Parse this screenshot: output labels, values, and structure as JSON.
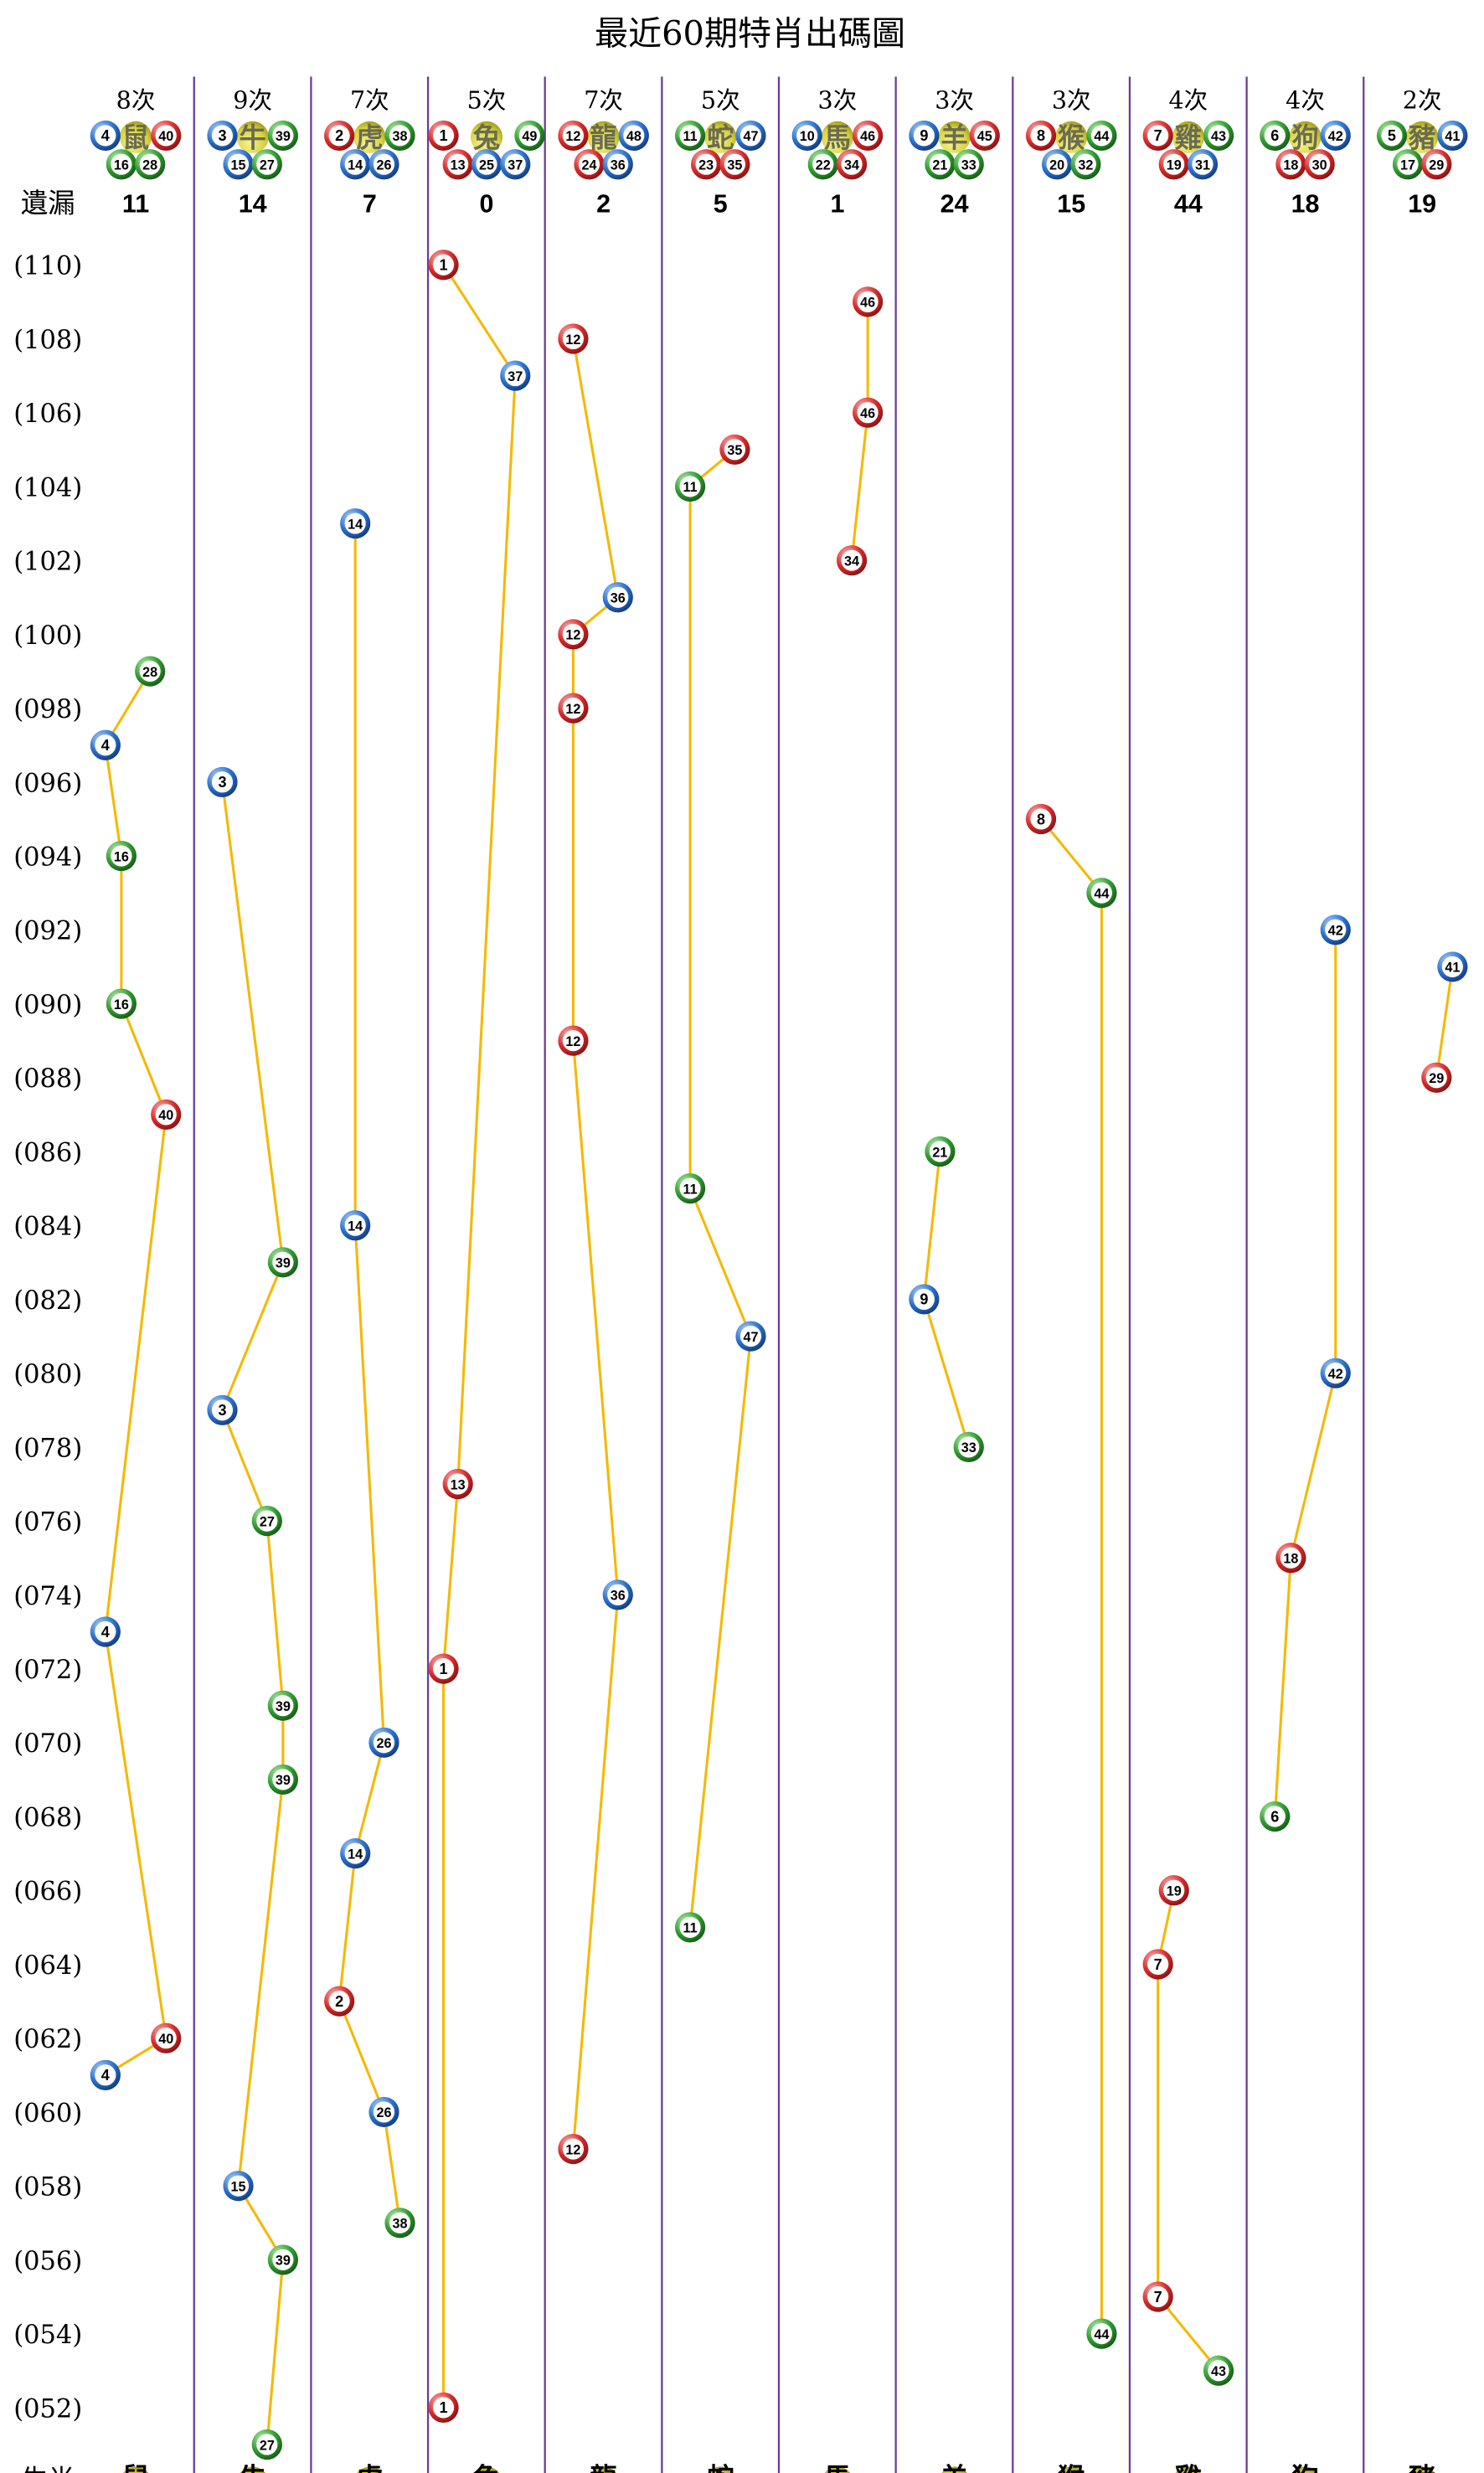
{
  "chart_data": {
    "type": "scatter",
    "title": "最近60期特肖出碼圖",
    "missed_label": "遺漏",
    "zodiac_label": "生肖",
    "y_tick_labels": [
      "(110)",
      "(108)",
      "(106)",
      "(104)",
      "(102)",
      "(100)",
      "(098)",
      "(096)",
      "(094)",
      "(092)",
      "(090)",
      "(088)",
      "(086)",
      "(084)",
      "(082)",
      "(080)",
      "(078)",
      "(076)",
      "(074)",
      "(072)",
      "(070)",
      "(068)",
      "(066)",
      "(064)",
      "(062)",
      "(060)",
      "(058)",
      "(056)",
      "(054)",
      "(052)"
    ],
    "period_range": [
      51,
      110
    ],
    "line_color": "#f5b800",
    "ball_colors": {
      "red": "#d42a2a",
      "blue": "#2a6fc9",
      "green": "#2f9a2f"
    },
    "red_numbers": [
      1,
      2,
      7,
      8,
      12,
      13,
      18,
      19,
      23,
      24,
      29,
      30,
      34,
      35,
      40,
      45,
      46
    ],
    "blue_numbers": [
      3,
      4,
      9,
      10,
      14,
      15,
      20,
      25,
      26,
      31,
      36,
      37,
      41,
      42,
      47,
      48
    ],
    "green_numbers": [
      5,
      6,
      11,
      16,
      17,
      21,
      22,
      27,
      28,
      32,
      33,
      38,
      39,
      43,
      44,
      49
    ],
    "columns": [
      {
        "zodiac": "鼠",
        "count_label": "8次",
        "missed": "11",
        "numbers": [
          4,
          16,
          28,
          40
        ],
        "points": [
          [
            99,
            28
          ],
          [
            97,
            4
          ],
          [
            94,
            16
          ],
          [
            90,
            16
          ],
          [
            87,
            40
          ],
          [
            73,
            4
          ],
          [
            62,
            40
          ],
          [
            61,
            4
          ]
        ]
      },
      {
        "zodiac": "牛",
        "count_label": "9次",
        "missed": "14",
        "numbers": [
          3,
          15,
          27,
          39
        ],
        "points": [
          [
            96,
            3
          ],
          [
            83,
            39
          ],
          [
            79,
            3
          ],
          [
            76,
            27
          ],
          [
            71,
            39
          ],
          [
            69,
            39
          ],
          [
            58,
            15
          ],
          [
            56,
            39
          ],
          [
            51,
            27
          ]
        ]
      },
      {
        "zodiac": "虎",
        "count_label": "7次",
        "missed": "7",
        "numbers": [
          2,
          14,
          26,
          38
        ],
        "points": [
          [
            103,
            14
          ],
          [
            84,
            14
          ],
          [
            70,
            26
          ],
          [
            67,
            14
          ],
          [
            63,
            2
          ],
          [
            60,
            26
          ],
          [
            57,
            38
          ]
        ]
      },
      {
        "zodiac": "兔",
        "count_label": "5次",
        "missed": "0",
        "numbers": [
          1,
          13,
          25,
          37,
          49
        ],
        "points": [
          [
            110,
            1
          ],
          [
            107,
            37
          ],
          [
            77,
            13
          ],
          [
            72,
            1
          ],
          [
            52,
            1
          ]
        ]
      },
      {
        "zodiac": "龍",
        "count_label": "7次",
        "missed": "2",
        "numbers": [
          12,
          24,
          36,
          48
        ],
        "points": [
          [
            108,
            12
          ],
          [
            101,
            36
          ],
          [
            100,
            12
          ],
          [
            98,
            12
          ],
          [
            89,
            12
          ],
          [
            74,
            36
          ],
          [
            59,
            12
          ]
        ]
      },
      {
        "zodiac": "蛇",
        "count_label": "5次",
        "missed": "5",
        "numbers": [
          11,
          23,
          35,
          47
        ],
        "points": [
          [
            105,
            35
          ],
          [
            104,
            11
          ],
          [
            85,
            11
          ],
          [
            81,
            47
          ],
          [
            65,
            11
          ]
        ]
      },
      {
        "zodiac": "馬",
        "count_label": "3次",
        "missed": "1",
        "numbers": [
          10,
          22,
          34,
          46
        ],
        "points": [
          [
            109,
            46
          ],
          [
            106,
            46
          ],
          [
            102,
            34
          ]
        ]
      },
      {
        "zodiac": "羊",
        "count_label": "3次",
        "missed": "24",
        "numbers": [
          9,
          21,
          33,
          45
        ],
        "points": [
          [
            86,
            21
          ],
          [
            82,
            9
          ],
          [
            78,
            33
          ]
        ]
      },
      {
        "zodiac": "猴",
        "count_label": "3次",
        "missed": "15",
        "numbers": [
          8,
          20,
          32,
          44
        ],
        "points": [
          [
            95,
            8
          ],
          [
            93,
            44
          ],
          [
            54,
            44
          ]
        ]
      },
      {
        "zodiac": "雞",
        "count_label": "4次",
        "missed": "44",
        "numbers": [
          7,
          19,
          31,
          43
        ],
        "points": [
          [
            66,
            19
          ],
          [
            64,
            7
          ],
          [
            55,
            7
          ],
          [
            53,
            43
          ]
        ]
      },
      {
        "zodiac": "狗",
        "count_label": "4次",
        "missed": "18",
        "numbers": [
          6,
          18,
          30,
          42
        ],
        "points": [
          [
            92,
            42
          ],
          [
            80,
            42
          ],
          [
            75,
            18
          ],
          [
            68,
            6
          ]
        ]
      },
      {
        "zodiac": "豬",
        "count_label": "2次",
        "missed": "19",
        "numbers": [
          5,
          17,
          29,
          41
        ],
        "points": [
          [
            91,
            41
          ],
          [
            88,
            29
          ]
        ]
      }
    ]
  }
}
